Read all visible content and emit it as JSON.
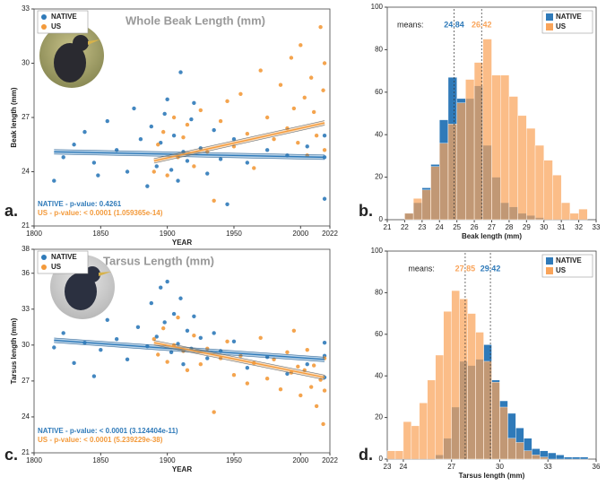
{
  "chart_data": [
    {
      "type": "scatter",
      "panel_label": "a.",
      "title": "Whole Beak Length (mm)",
      "xlabel": "YEAR",
      "ylabel": "Beak length (mm)",
      "xlim": [
        1800,
        2022
      ],
      "xticks": [
        1800,
        1850,
        1900,
        1950,
        2000,
        2022
      ],
      "ylim": [
        21,
        33
      ],
      "yticks": [
        21,
        24,
        27,
        30,
        33
      ],
      "annotations": [
        "NATIVE - p-value: 0.4261",
        "US - p-value: < 0.0001 (1.059365e-14)"
      ],
      "series": [
        {
          "name": "NATIVE",
          "color": "#2f7ab9",
          "x": [
            1815,
            1822,
            1830,
            1838,
            1845,
            1848,
            1855,
            1862,
            1870,
            1875,
            1880,
            1885,
            1888,
            1892,
            1895,
            1898,
            1900,
            1903,
            1905,
            1908,
            1910,
            1912,
            1915,
            1918,
            1920,
            1925,
            1930,
            1935,
            1940,
            1945,
            1950,
            1960,
            1975,
            1990,
            2005,
            2018,
            2018,
            2018
          ],
          "values": [
            23.5,
            24.8,
            25.5,
            26.2,
            24.5,
            23.8,
            26.8,
            25.2,
            24.0,
            27.5,
            25.8,
            23.2,
            26.5,
            24.3,
            25.6,
            27.2,
            28.0,
            24.1,
            26.0,
            23.5,
            29.5,
            25.1,
            24.6,
            26.9,
            27.8,
            25.3,
            23.9,
            26.3,
            24.7,
            22.2,
            25.8,
            24.5,
            25.2,
            24.9,
            25.4,
            22.5,
            26.0,
            24.8
          ],
          "trend": {
            "x": [
              1815,
              2018
            ],
            "values": [
              25.1,
              24.8
            ]
          }
        },
        {
          "name": "US",
          "color": "#f39a3b",
          "x": [
            1890,
            1893,
            1897,
            1900,
            1905,
            1908,
            1912,
            1915,
            1920,
            1925,
            1930,
            1935,
            1940,
            1945,
            1950,
            1955,
            1960,
            1965,
            1970,
            1975,
            1980,
            1985,
            1990,
            1993,
            1995,
            1998,
            2000,
            2003,
            2005,
            2008,
            2010,
            2012,
            2015,
            2017,
            2018,
            2018
          ],
          "values": [
            24.0,
            25.5,
            26.2,
            23.8,
            27.0,
            24.8,
            25.9,
            26.6,
            24.3,
            27.4,
            25.1,
            22.4,
            26.8,
            27.9,
            25.4,
            28.3,
            26.1,
            24.2,
            29.6,
            27.0,
            25.8,
            28.8,
            26.4,
            30.3,
            27.5,
            25.6,
            31.0,
            28.1,
            24.9,
            29.2,
            27.3,
            26.0,
            32.0,
            28.5,
            25.2,
            30.0
          ],
          "trend": {
            "x": [
              1890,
              2018
            ],
            "values": [
              24.6,
              26.7
            ]
          }
        }
      ]
    },
    {
      "type": "histogram",
      "panel_label": "b.",
      "xlabel": "Beak length (mm)",
      "means_label": "means:",
      "xlim": [
        21,
        33
      ],
      "xticks": [
        21,
        22,
        23,
        24,
        25,
        26,
        27,
        28,
        29,
        30,
        31,
        32,
        33
      ],
      "ylim": [
        0,
        100
      ],
      "yticks": [
        0,
        20,
        40,
        60,
        80,
        100
      ],
      "bins": [
        22,
        22.5,
        23,
        23.5,
        24,
        24.5,
        25,
        25.5,
        26,
        26.5,
        27,
        27.5,
        28,
        28.5,
        29,
        29.5,
        30,
        30.5,
        31,
        31.5,
        32,
        32.5
      ],
      "series": [
        {
          "name": "NATIVE",
          "color": "#2f7ab9",
          "mean": 24.84,
          "values": [
            3,
            8,
            15,
            26,
            47,
            67,
            57,
            57,
            63,
            35,
            20,
            8,
            6,
            3,
            2,
            1,
            0,
            0,
            0,
            0,
            0
          ]
        },
        {
          "name": "US",
          "color": "#f9a45a",
          "mean": 26.42,
          "values": [
            3,
            10,
            14,
            25,
            36,
            45,
            55,
            66,
            74,
            85,
            68,
            68,
            58,
            49,
            43,
            35,
            28,
            21,
            8,
            3,
            5
          ]
        }
      ]
    },
    {
      "type": "scatter",
      "panel_label": "c.",
      "title": "Tarsus Length (mm)",
      "xlabel": "YEAR",
      "ylabel": "Tarsus length (mm)",
      "xlim": [
        1800,
        2022
      ],
      "xticks": [
        1800,
        1850,
        1900,
        1950,
        2000,
        2022
      ],
      "ylim": [
        21,
        38
      ],
      "yticks": [
        21,
        24,
        27,
        30,
        33,
        36,
        38
      ],
      "annotations": [
        "NATIVE - p-value: < 0.0001 (3.124404e-11)",
        "US - p-value: < 0.0001 (5.239229e-38)"
      ],
      "series": [
        {
          "name": "NATIVE",
          "color": "#2f7ab9",
          "x": [
            1815,
            1822,
            1830,
            1838,
            1845,
            1850,
            1855,
            1862,
            1870,
            1878,
            1885,
            1888,
            1892,
            1895,
            1898,
            1900,
            1903,
            1905,
            1908,
            1910,
            1912,
            1915,
            1918,
            1920,
            1925,
            1930,
            1935,
            1940,
            1950,
            1960,
            1975,
            1990,
            2005,
            2018,
            2018,
            2018
          ],
          "values": [
            29.8,
            31.0,
            28.5,
            30.2,
            27.4,
            29.6,
            32.1,
            30.5,
            28.8,
            31.5,
            29.9,
            33.5,
            30.7,
            34.8,
            31.9,
            35.3,
            29.4,
            32.6,
            30.1,
            33.9,
            28.4,
            31.2,
            29.7,
            32.4,
            30.6,
            28.9,
            31.0,
            29.5,
            30.3,
            28.1,
            29.0,
            27.6,
            28.4,
            30.2,
            27.3,
            29.1
          ],
          "trend": {
            "x": [
              1815,
              2018
            ],
            "values": [
              30.4,
              28.8
            ]
          }
        },
        {
          "name": "US",
          "color": "#f39a3b",
          "x": [
            1890,
            1893,
            1897,
            1900,
            1905,
            1908,
            1912,
            1915,
            1920,
            1925,
            1930,
            1935,
            1940,
            1945,
            1950,
            1955,
            1960,
            1965,
            1970,
            1975,
            1980,
            1985,
            1990,
            1993,
            1995,
            1998,
            2000,
            2003,
            2005,
            2008,
            2010,
            2012,
            2015,
            2017,
            2018,
            2018
          ],
          "values": [
            30.5,
            29.2,
            31.4,
            28.6,
            30.0,
            32.3,
            29.5,
            27.9,
            30.8,
            28.4,
            29.7,
            24.4,
            28.9,
            30.3,
            27.5,
            29.1,
            26.8,
            28.5,
            30.6,
            27.2,
            28.8,
            26.3,
            29.4,
            27.7,
            31.2,
            28.2,
            25.8,
            27.9,
            29.6,
            26.5,
            28.3,
            24.9,
            27.1,
            23.4,
            28.9,
            26.2
          ],
          "trend": {
            "x": [
              1890,
              2018
            ],
            "values": [
              30.2,
              27.3
            ]
          }
        }
      ]
    },
    {
      "type": "histogram",
      "panel_label": "d.",
      "xlabel": "Tarsus length (mm)",
      "means_label": "means:",
      "xlim": [
        23,
        36
      ],
      "xticks": [
        23,
        24,
        27,
        30,
        33,
        36
      ],
      "ylim": [
        0,
        100
      ],
      "yticks": [
        0,
        20,
        40,
        60,
        80,
        100
      ],
      "bins": [
        23,
        23.5,
        24,
        24.5,
        25,
        25.5,
        26,
        26.5,
        27,
        27.5,
        28,
        28.5,
        29,
        29.5,
        30,
        30.5,
        31,
        31.5,
        32,
        32.5,
        33,
        33.5,
        34,
        34.5,
        35,
        35.5
      ],
      "series": [
        {
          "name": "NATIVE",
          "color": "#2f7ab9",
          "mean": 29.42,
          "values": [
            0,
            0,
            0,
            0,
            0,
            0,
            2,
            10,
            25,
            47,
            45,
            48,
            55,
            38,
            28,
            22,
            15,
            10,
            5,
            4,
            3,
            2,
            1,
            1,
            1
          ]
        },
        {
          "name": "US",
          "color": "#f9a45a",
          "mean": 27.85,
          "values": [
            4,
            4,
            18,
            16,
            27,
            38,
            50,
            71,
            81,
            77,
            70,
            61,
            47,
            37,
            25,
            10,
            8,
            4,
            2,
            1,
            0,
            0,
            0,
            0,
            0
          ]
        }
      ]
    }
  ]
}
